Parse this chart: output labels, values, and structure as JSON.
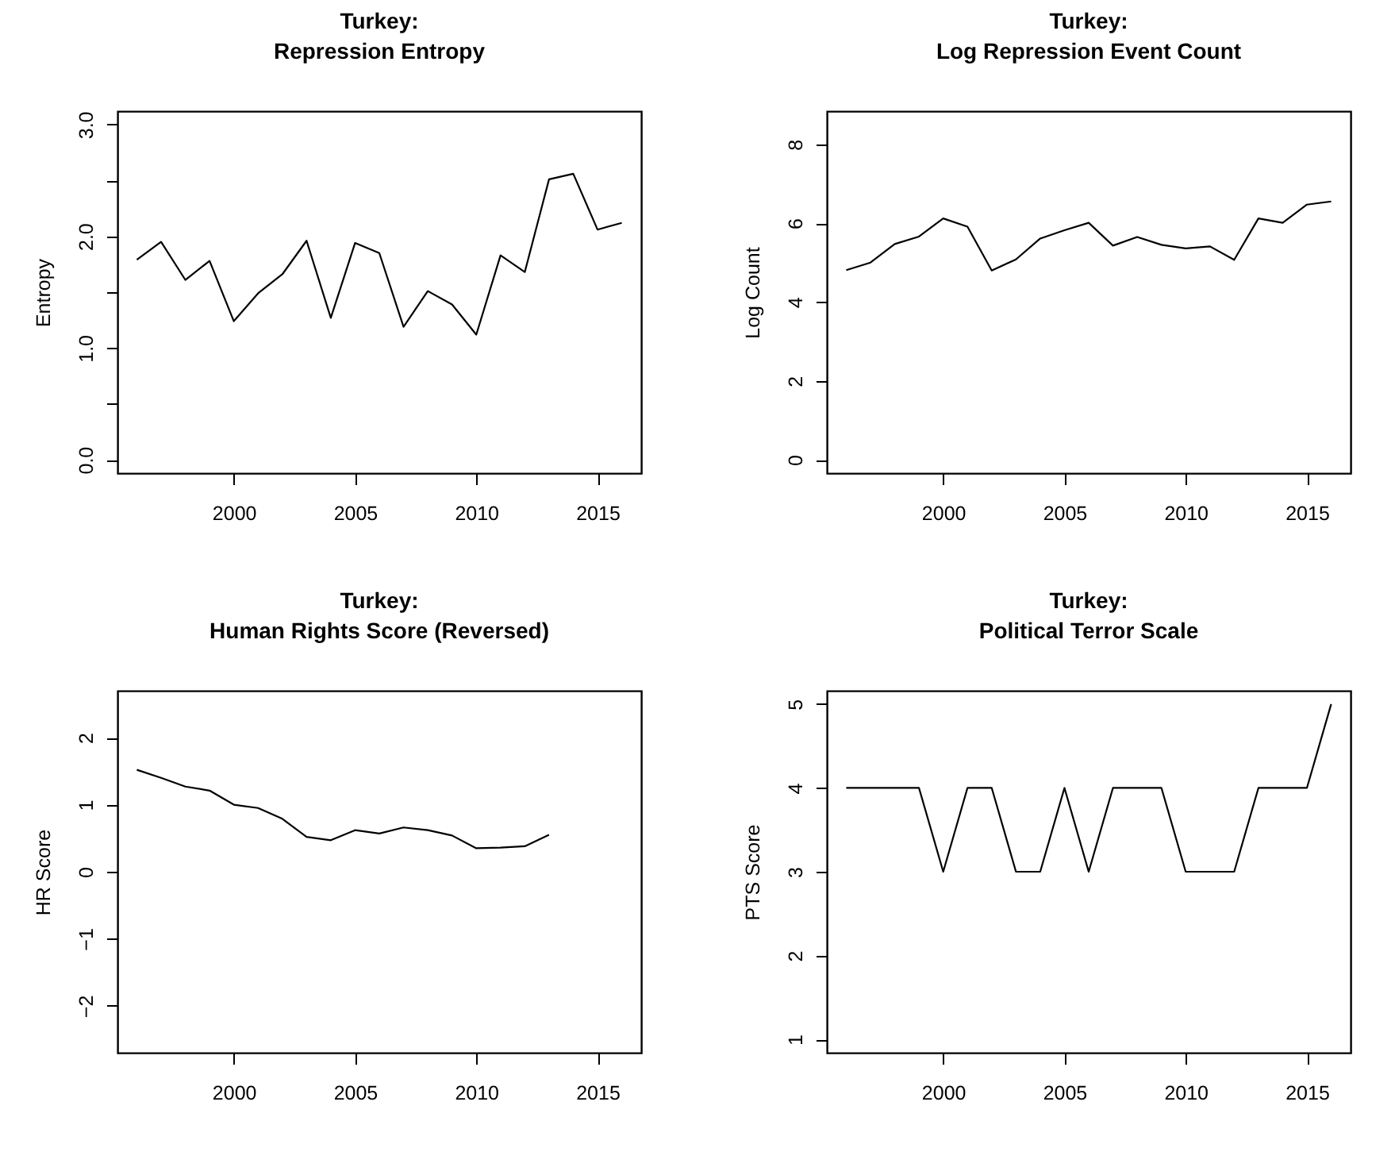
{
  "chart_data": [
    {
      "type": "line",
      "title": "Turkey:\nRepression Entropy",
      "ylabel": "Entropy",
      "x": [
        1996,
        1997,
        1998,
        1999,
        2000,
        2001,
        2002,
        2003,
        2004,
        2005,
        2006,
        2007,
        2008,
        2009,
        2010,
        2011,
        2012,
        2013,
        2014,
        2015,
        2016
      ],
      "series": [
        {
          "color": "#000000",
          "values": [
            1.79,
            1.95,
            1.61,
            1.78,
            1.24,
            1.49,
            1.66,
            1.96,
            1.27,
            1.94,
            1.85,
            1.19,
            1.51,
            1.39,
            1.12,
            1.83,
            1.68,
            2.51,
            2.56,
            2.06,
            2.12
          ]
        }
      ],
      "xlim": [
        1995.2,
        2016.8
      ],
      "xticks": [
        2000,
        2005,
        2010,
        2015
      ],
      "ylim": [
        -0.12,
        3.12
      ],
      "yticks": [
        {
          "value": 0,
          "label": "0.0"
        },
        {
          "value": 0.5,
          "label": null
        },
        {
          "value": 1,
          "label": "1.0"
        },
        {
          "value": 1.5,
          "label": null
        },
        {
          "value": 2,
          "label": "2.0"
        },
        {
          "value": 2.5,
          "label": null
        },
        {
          "value": 3,
          "label": "3.0"
        }
      ],
      "grid": false
    },
    {
      "type": "line",
      "title": "Turkey:\nLog Repression Event Count",
      "ylabel": "Log Count",
      "x": [
        1996,
        1997,
        1998,
        1999,
        2000,
        2001,
        2002,
        2003,
        2004,
        2005,
        2006,
        2007,
        2008,
        2009,
        2010,
        2011,
        2012,
        2013,
        2014,
        2015,
        2016
      ],
      "series": [
        {
          "color": "#000000",
          "values": [
            4.81,
            5.0,
            5.47,
            5.66,
            6.12,
            5.91,
            4.8,
            5.08,
            5.61,
            5.82,
            6.01,
            5.43,
            5.65,
            5.45,
            5.36,
            5.41,
            5.07,
            6.12,
            6.01,
            6.47,
            6.55
          ]
        }
      ],
      "xlim": [
        1995.2,
        2016.8
      ],
      "xticks": [
        2000,
        2005,
        2010,
        2015
      ],
      "ylim": [
        -0.34,
        8.84
      ],
      "yticks": [
        0,
        2,
        4,
        6,
        8
      ],
      "grid": false
    },
    {
      "type": "line",
      "title": "Turkey:\nHuman Rights Score (Reversed)",
      "ylabel": "HR Score",
      "series": [
        {
          "color": "#000000",
          "x": [
            1996,
            1997,
            1998,
            1999,
            2000,
            2001,
            2002,
            2003,
            2004,
            2005,
            2006,
            2007,
            2008,
            2009,
            2010,
            2011,
            2012,
            2013
          ],
          "values": [
            1.52,
            1.4,
            1.27,
            1.21,
            1.0,
            0.95,
            0.79,
            0.52,
            0.47,
            0.62,
            0.57,
            0.66,
            0.62,
            0.54,
            0.35,
            0.36,
            0.38,
            0.55
          ]
        }
      ],
      "xlim": [
        1995.2,
        2016.8
      ],
      "xticks": [
        2000,
        2005,
        2010,
        2015
      ],
      "ylim": [
        -2.7,
        2.7
      ],
      "yticks": [
        {
          "value": -2,
          "label": "−2"
        },
        {
          "value": -1,
          "label": "−1"
        },
        0,
        1,
        2
      ],
      "grid": false
    },
    {
      "type": "line",
      "title": "Turkey:\nPolitical Terror Scale",
      "ylabel": "PTS Score",
      "x": [
        1996,
        1997,
        1998,
        1999,
        2000,
        2001,
        2002,
        2003,
        2004,
        2005,
        2006,
        2007,
        2008,
        2009,
        2010,
        2011,
        2012,
        2013,
        2014,
        2015,
        2016
      ],
      "series": [
        {
          "color": "#000000",
          "values": [
            4,
            4,
            4,
            4,
            3,
            4,
            4,
            3,
            3,
            4,
            3,
            4,
            4,
            4,
            3,
            3,
            3,
            4,
            4,
            4,
            5
          ]
        }
      ],
      "xlim": [
        1995.2,
        2016.8
      ],
      "xticks": [
        2000,
        2005,
        2010,
        2015
      ],
      "ylim": [
        0.84,
        5.16
      ],
      "yticks": [
        1,
        2,
        3,
        4,
        5
      ],
      "grid": false
    }
  ]
}
